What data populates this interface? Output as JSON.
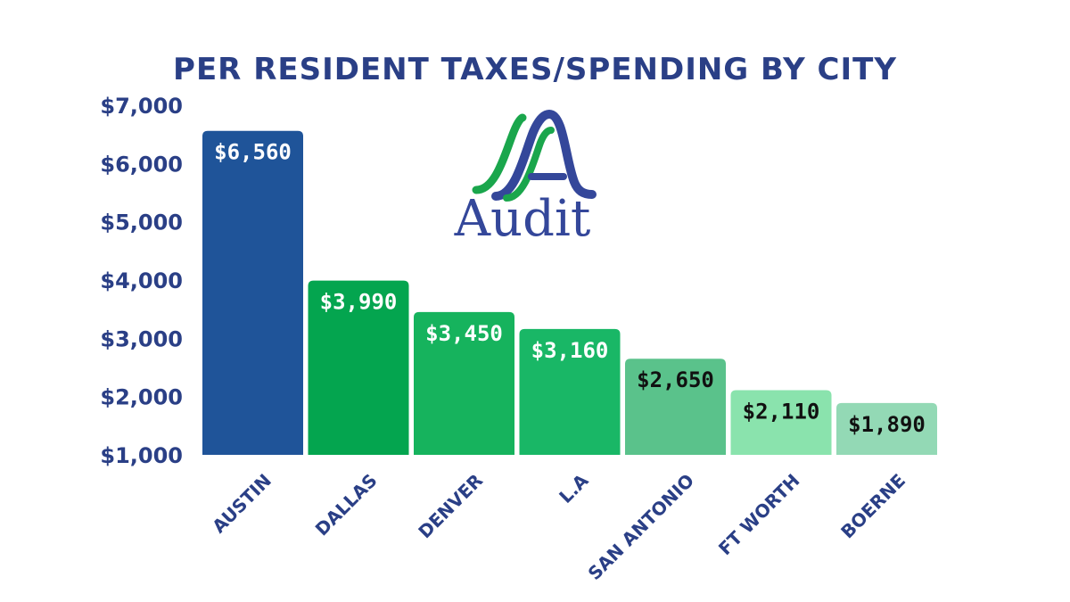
{
  "chart_data": {
    "type": "bar",
    "title": "PER RESIDENT TAXES/SPENDING BY CITY",
    "categories": [
      "AUSTIN",
      "DALLAS",
      "DENVER",
      "L.A",
      "SAN ANTONIO",
      "FT WORTH",
      "BOERNE"
    ],
    "values": [
      6560,
      3990,
      3450,
      3160,
      2650,
      2110,
      1890
    ],
    "data_labels": [
      "$6,560",
      "$3,990",
      "$3,450",
      "$3,160",
      "$2,650",
      "$2,110",
      "$1,890"
    ],
    "bar_colors": [
      "#1f5499",
      "#04a54f",
      "#16b35d",
      "#19b766",
      "#5ac28b",
      "#8ae3ad",
      "#93d9b5"
    ],
    "label_colors": [
      "#ffffff",
      "#ffffff",
      "#ffffff",
      "#ffffff",
      "#111111",
      "#111111",
      "#111111"
    ],
    "yticks": [
      1000,
      2000,
      3000,
      4000,
      5000,
      6000,
      7000
    ],
    "ytick_labels": [
      "$1,000",
      "$2,000",
      "$3,000",
      "$4,000",
      "$5,000",
      "$6,000",
      "$7,000"
    ],
    "ylim": [
      1000,
      7000
    ],
    "xlabel": "",
    "ylabel": "",
    "grid": false,
    "legend": "none"
  },
  "logo": {
    "text": "Audit",
    "colors": {
      "blue": "#34479a",
      "green": "#1aa64c"
    }
  }
}
